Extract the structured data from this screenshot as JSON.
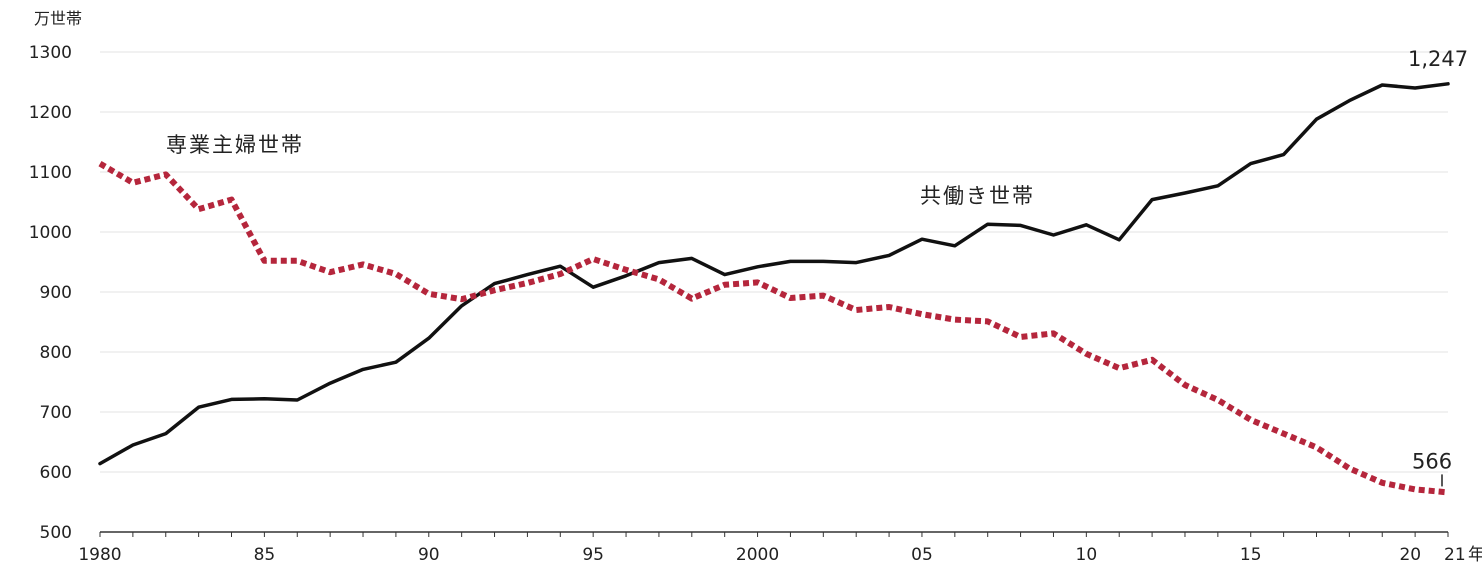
{
  "chart_data": {
    "type": "line",
    "unit": "万世帯",
    "year_suffix": "年",
    "ylim": [
      500,
      1300
    ],
    "y_ticks": [
      "500",
      "600",
      "700",
      "800",
      "900",
      "1000",
      "1100",
      "1200",
      "1300"
    ],
    "xlim": [
      1980,
      2021
    ],
    "x_ticks": [
      {
        "year": 1980,
        "label": "1980"
      },
      {
        "year": 1985,
        "label": "85"
      },
      {
        "year": 1990,
        "label": "90"
      },
      {
        "year": 1995,
        "label": "95"
      },
      {
        "year": 2000,
        "label": "2000"
      },
      {
        "year": 2005,
        "label": "05"
      },
      {
        "year": 2010,
        "label": "10"
      },
      {
        "year": 2015,
        "label": "15"
      },
      {
        "year": 2020,
        "label": "20"
      },
      {
        "year": 2021,
        "label": "21"
      }
    ],
    "grid": true,
    "x": [
      1980,
      1981,
      1982,
      1983,
      1984,
      1985,
      1986,
      1987,
      1988,
      1989,
      1990,
      1991,
      1992,
      1993,
      1994,
      1995,
      1996,
      1997,
      1998,
      1999,
      2000,
      2001,
      2002,
      2003,
      2004,
      2005,
      2006,
      2007,
      2008,
      2009,
      2010,
      2011,
      2012,
      2013,
      2014,
      2015,
      2016,
      2017,
      2018,
      2019,
      2020,
      2021
    ],
    "series": [
      {
        "name": "共働き世帯",
        "color": "#111111",
        "style": "solid",
        "values": [
          614,
          645,
          664,
          708,
          721,
          722,
          720,
          748,
          771,
          783,
          823,
          877,
          914,
          929,
          943,
          908,
          927,
          949,
          956,
          929,
          942,
          951,
          951,
          949,
          961,
          988,
          977,
          1013,
          1011,
          995,
          1012,
          987,
          1054,
          1065,
          1077,
          1114,
          1129,
          1188,
          1219,
          1245,
          1240,
          1247
        ],
        "end_label": "1,247"
      },
      {
        "name": "専業主婦世帯",
        "color": "#b5263c",
        "style": "dotted",
        "values": [
          1114,
          1082,
          1096,
          1038,
          1054,
          952,
          952,
          933,
          946,
          930,
          897,
          888,
          903,
          915,
          930,
          955,
          937,
          921,
          889,
          912,
          916,
          890,
          894,
          870,
          875,
          863,
          854,
          851,
          825,
          831,
          797,
          773,
          787,
          745,
          720,
          687,
          664,
          641,
          606,
          582,
          571,
          566
        ],
        "end_label": "566"
      }
    ]
  }
}
